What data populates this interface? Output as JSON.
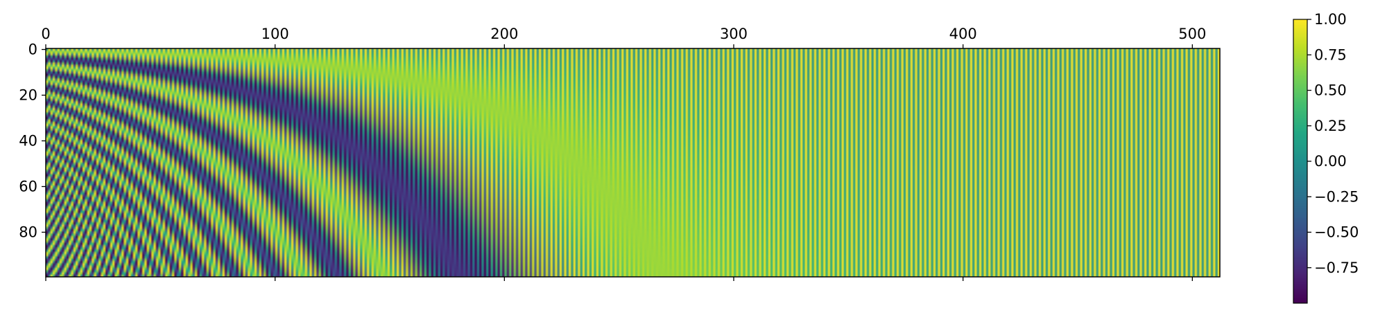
{
  "chart_data": {
    "type": "heatmap",
    "title": "",
    "xlabel": "",
    "ylabel": "",
    "x_ticks": [
      "0",
      "100",
      "200",
      "300",
      "400",
      "500"
    ],
    "y_ticks": [
      "0",
      "20",
      "40",
      "60",
      "80"
    ],
    "x_range": [
      0,
      512
    ],
    "y_range": [
      0,
      100
    ],
    "matrix_shape": {
      "rows": 100,
      "cols": 512
    },
    "value_formula": "positional encoding: even columns sin(row / 10000^(col/512)), odd columns cos(row / 10000^((col-1)/512))",
    "value_range": [
      -1.0,
      1.0
    ],
    "colormap": "viridis",
    "x_axis_position": "top",
    "grid": false,
    "colorbar": {
      "position": "right",
      "ticks": [
        "1.00",
        "0.75",
        "0.50",
        "0.25",
        "0.00",
        "−0.25",
        "−0.50",
        "−0.75"
      ],
      "tick_values": [
        1.0,
        0.75,
        0.5,
        0.25,
        0.0,
        -0.25,
        -0.5,
        -0.75
      ]
    },
    "colors": {
      "viridis_low": "#440154",
      "viridis_mid": "#21918c",
      "viridis_high": "#fde725"
    }
  }
}
